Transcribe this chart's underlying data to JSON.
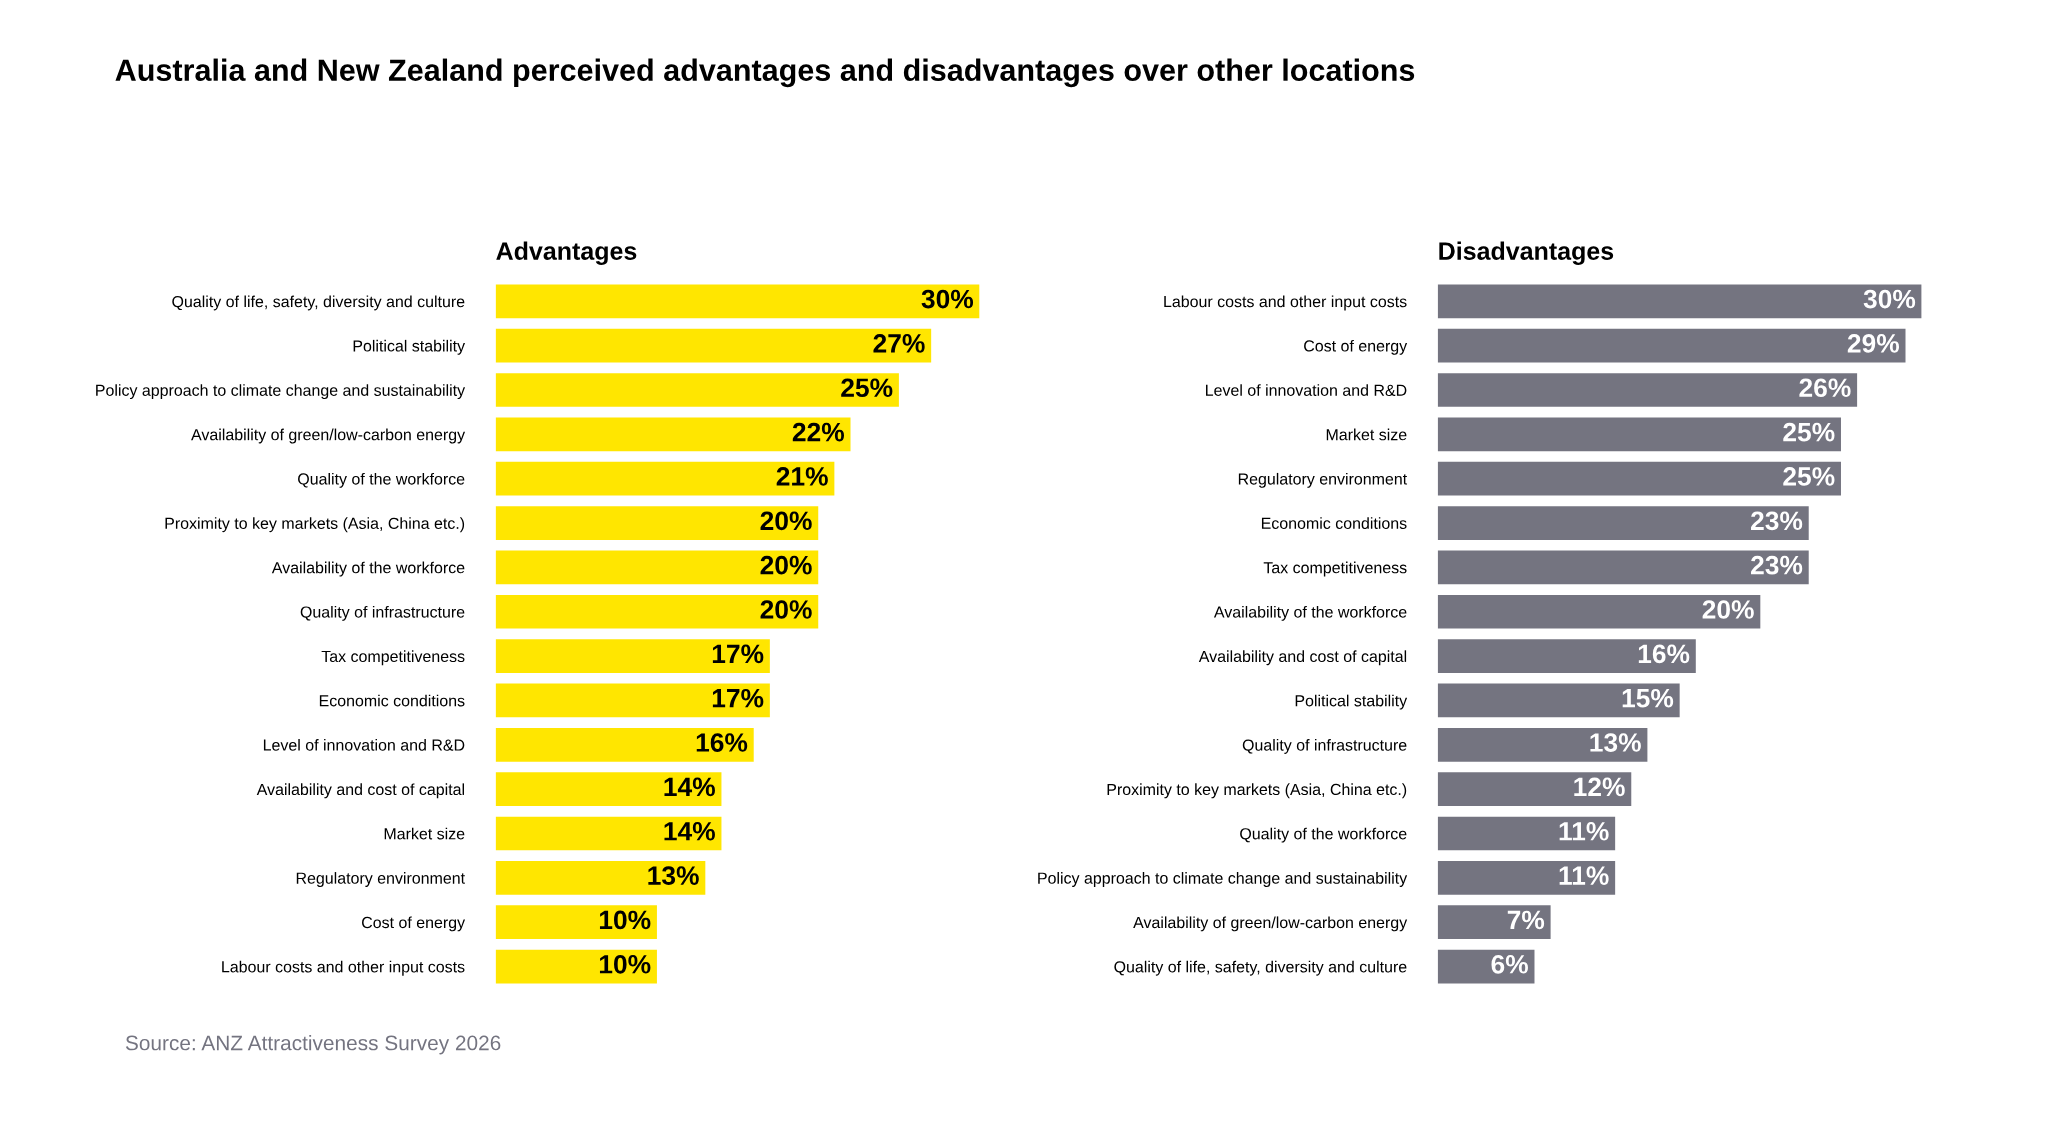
{
  "chart_data": [
    {
      "type": "bar",
      "orientation": "horizontal",
      "title": "Advantages",
      "grid": false,
      "legend": false,
      "tick_labels": "y",
      "categories": [
        "Quality of life, safety, diversity and culture",
        "Political stability",
        "Policy approach to climate change and sustainability",
        "Availability of green/low-carbon energy",
        "Quality of the workforce",
        "Proximity to key markets (Asia, China etc.)",
        "Availability of the workforce",
        "Quality of infrastructure",
        "Tax competitiveness",
        "Economic conditions",
        "Level of innovation and R&D",
        "Availability and cost of capital",
        "Market size",
        "Regulatory environment",
        "Cost of energy",
        "Labour costs and other input costs"
      ],
      "series": [
        {
          "color": "#ffe600",
          "values": [
            30,
            27,
            25,
            22,
            21,
            20,
            20,
            20,
            17,
            17,
            16,
            14,
            14,
            13,
            10,
            10
          ],
          "value_labels": [
            "30%",
            "27%",
            "25%",
            "22%",
            "21%",
            "20%",
            "20%",
            "20%",
            "17%",
            "17%",
            "16%",
            "14%",
            "14%",
            "13%",
            "10%",
            "10%"
          ]
        }
      ]
    },
    {
      "type": "bar",
      "orientation": "horizontal",
      "title": "Disadvantages",
      "grid": false,
      "legend": false,
      "tick_labels": "y",
      "categories": [
        "Labour costs and other input costs",
        "Cost of energy",
        "Level of innovation and R&D",
        "Market size",
        "Regulatory environment",
        "Economic conditions",
        "Tax competitiveness",
        "Availability of the workforce",
        "Availability and cost of capital",
        "Political stability",
        "Quality of infrastructure",
        "Proximity to key markets (Asia, China etc.)",
        "Quality of the workforce",
        "Policy approach to climate change and sustainability",
        "Availability of green/low-carbon energy",
        "Quality of life, safety, diversity and culture"
      ],
      "series": [
        {
          "color": "#747480",
          "values": [
            30,
            29,
            26,
            25,
            25,
            23,
            23,
            20,
            16,
            15,
            13,
            12,
            11,
            11,
            7,
            6
          ],
          "value_labels": [
            "30%",
            "29%",
            "26%",
            "25%",
            "25%",
            "23%",
            "23%",
            "20%",
            "16%",
            "15%",
            "13%",
            "12%",
            "11%",
            "11%",
            "7%",
            "6%"
          ]
        }
      ],
      "annotations": [
        "Australia and New Zealand perceived advantages and disadvantages over other locations",
        "Source: ANZ Attractiveness Survey 2026"
      ]
    }
  ]
}
